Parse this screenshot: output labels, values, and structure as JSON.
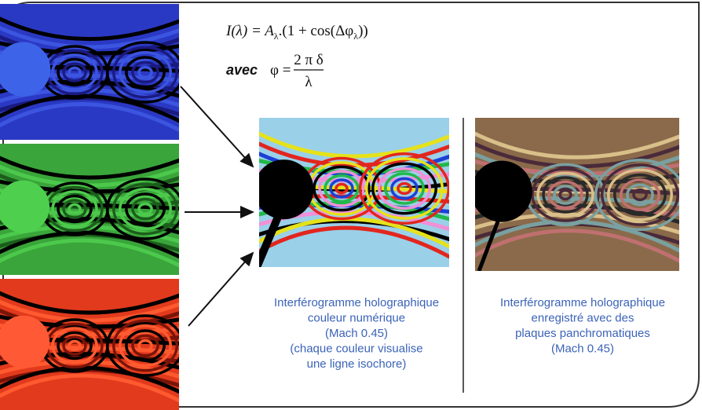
{
  "formula": {
    "line1": [
      "I(λ) = A",
      "λ",
      ".(1 + cos(Δφ",
      "λ",
      "))"
    ],
    "line2": {
      "avec": "avec",
      "lhs": "φ =",
      "numerator": "2 π δ",
      "denominator": "λ"
    }
  },
  "captions": {
    "digital": [
      "Interférogramme holographique",
      "couleur numérique",
      "(Mach 0.45)",
      "(chaque couleur visualise",
      "une ligne isochore)"
    ],
    "panchromatic": [
      "Interférogramme holographique",
      "enregistré avec des",
      "plaques panchromatiques",
      "(Mach 0.45)"
    ]
  }
}
